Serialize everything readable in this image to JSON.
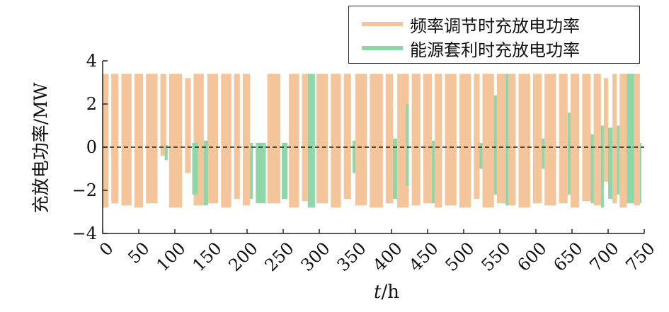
{
  "chart_data": {
    "type": "bar",
    "xlabel_var": "t",
    "xlabel_unit": "/h",
    "ylabel": "充放电功率/MW",
    "xlim": [
      0,
      750
    ],
    "ylim": [
      -4,
      4
    ],
    "xticks": [
      0,
      50,
      100,
      150,
      200,
      250,
      300,
      350,
      400,
      450,
      500,
      550,
      600,
      650,
      700,
      750
    ],
    "yticks": [
      4,
      2,
      0,
      -2,
      -4
    ],
    "zero_line": "dashed",
    "legend_position": "top-right",
    "series": [
      {
        "name": "频率调节时充放电功率",
        "color": "#f4c49a",
        "segments": [
          [
            0,
            8,
            3.4,
            -2.8
          ],
          [
            12,
            22,
            3.4,
            -2.6
          ],
          [
            26,
            40,
            3.4,
            -2.7
          ],
          [
            44,
            56,
            3.4,
            -2.8
          ],
          [
            60,
            76,
            3.4,
            -2.6
          ],
          [
            80,
            88,
            3.4,
            -0.4
          ],
          [
            92,
            110,
            3.4,
            -2.8
          ],
          [
            114,
            122,
            3.2,
            -1.2
          ],
          [
            126,
            140,
            3.4,
            -2.7
          ],
          [
            145,
            160,
            3.4,
            -2.6
          ],
          [
            164,
            178,
            3.4,
            -2.8
          ],
          [
            182,
            190,
            3.4,
            -2.4
          ],
          [
            194,
            204,
            3.4,
            -2.7
          ],
          [
            228,
            246,
            3.4,
            -2.6
          ],
          [
            258,
            272,
            3.4,
            -2.8
          ],
          [
            276,
            284,
            3.4,
            -2.5
          ],
          [
            296,
            312,
            3.4,
            -2.6
          ],
          [
            316,
            330,
            3.4,
            -2.8
          ],
          [
            334,
            344,
            3.4,
            -2.4
          ],
          [
            350,
            366,
            3.4,
            -2.7
          ],
          [
            370,
            388,
            3.4,
            -2.8
          ],
          [
            392,
            402,
            3.4,
            -2.6
          ],
          [
            408,
            424,
            3.4,
            -2.8
          ],
          [
            428,
            440,
            3.4,
            -2.7
          ],
          [
            444,
            456,
            3.4,
            -2.6
          ],
          [
            460,
            470,
            3.4,
            -2.8
          ],
          [
            474,
            490,
            3.4,
            -2.7
          ],
          [
            494,
            510,
            3.4,
            -2.8
          ],
          [
            514,
            522,
            3.4,
            -2.4
          ],
          [
            526,
            542,
            3.4,
            -2.8
          ],
          [
            546,
            558,
            3.4,
            -2.6
          ],
          [
            562,
            572,
            3.4,
            -2.7
          ],
          [
            576,
            592,
            3.4,
            -2.8
          ],
          [
            596,
            608,
            3.4,
            -2.6
          ],
          [
            612,
            628,
            3.4,
            -2.7
          ],
          [
            632,
            644,
            3.4,
            -2.6
          ],
          [
            648,
            660,
            3.4,
            -2.8
          ],
          [
            664,
            676,
            3.4,
            -2.5
          ],
          [
            680,
            690,
            3.4,
            -2.7
          ],
          [
            694,
            700,
            3.2,
            -1.6
          ],
          [
            706,
            712,
            3.4,
            -2.6
          ],
          [
            716,
            726,
            3.4,
            -2.8
          ],
          [
            736,
            744,
            3.4,
            -2.7
          ]
        ]
      },
      {
        "name": "能源套利时充放电功率",
        "color": "#8fd6a8",
        "segments": [
          [
            86,
            90,
            0.1,
            -0.6
          ],
          [
            124,
            132,
            0.2,
            -2.2
          ],
          [
            140,
            146,
            0.3,
            -2.7
          ],
          [
            204,
            208,
            0.2,
            -2.4
          ],
          [
            212,
            226,
            0.2,
            -2.6
          ],
          [
            248,
            256,
            0.2,
            -2.4
          ],
          [
            284,
            294,
            3.4,
            -2.8
          ],
          [
            346,
            350,
            0.3,
            -1.2
          ],
          [
            402,
            408,
            0.4,
            -2.4
          ],
          [
            420,
            424,
            2.0,
            -1.8
          ],
          [
            456,
            460,
            0.3,
            -2.6
          ],
          [
            522,
            526,
            0.2,
            -1.0
          ],
          [
            542,
            546,
            2.4,
            -2.2
          ],
          [
            558,
            562,
            3.4,
            -2.7
          ],
          [
            608,
            612,
            0.4,
            -1.0
          ],
          [
            644,
            648,
            1.6,
            -2.2
          ],
          [
            676,
            680,
            0.6,
            -2.6
          ],
          [
            690,
            694,
            1.0,
            -2.8
          ],
          [
            700,
            706,
            0.9,
            -2.4
          ],
          [
            712,
            716,
            1.0,
            -2.2
          ],
          [
            726,
            736,
            3.4,
            -2.6
          ],
          [
            744,
            746,
            0.2,
            -2.6
          ]
        ]
      }
    ]
  }
}
